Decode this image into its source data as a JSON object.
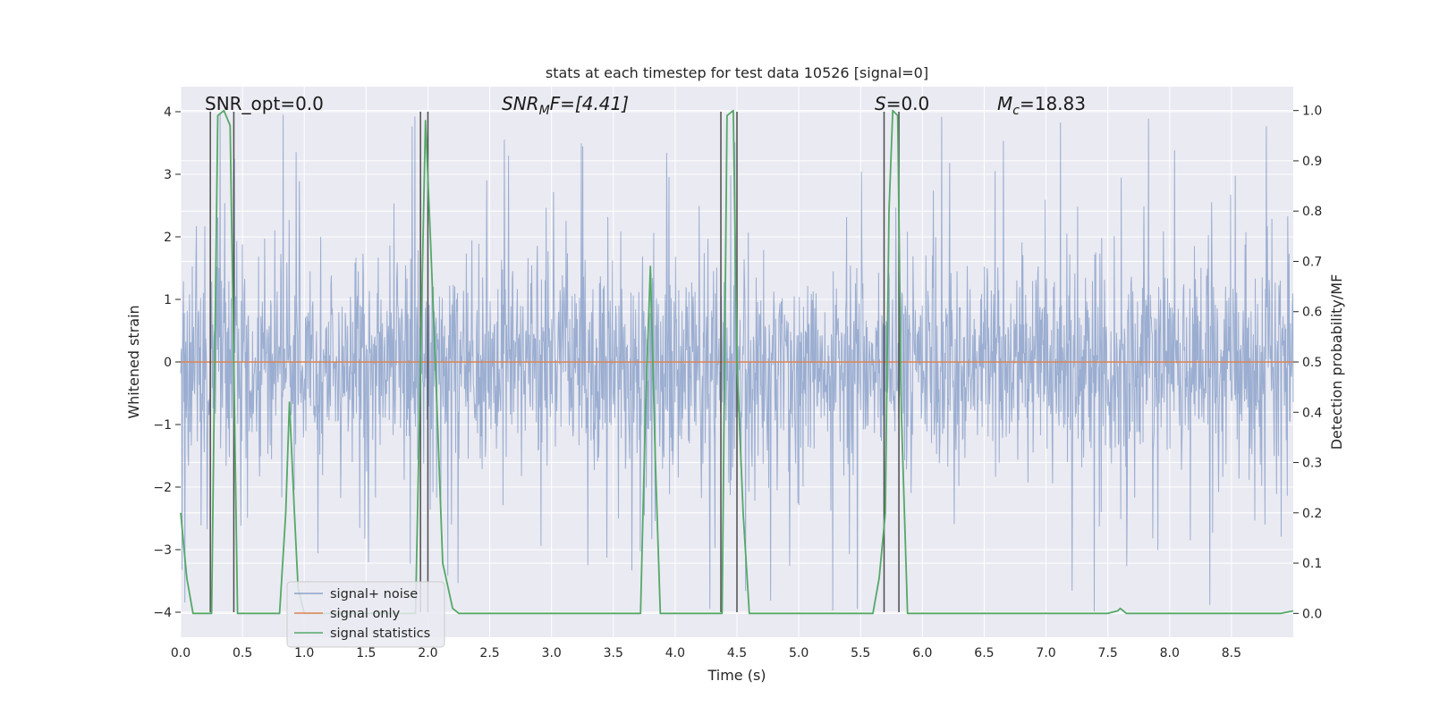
{
  "chart_data": {
    "type": "line",
    "title": "stats at each timestep for test data 10526 [signal=0]",
    "xlabel": "Time (s)",
    "ylabel": "Whitened strain",
    "y2label": "Detection probability/MF",
    "xlim": [
      0,
      9
    ],
    "ylim": [
      -4.4,
      4.4
    ],
    "y2lim": [
      -0.0474,
      1.0474
    ],
    "x_ticks": [
      "0.0",
      "0.5",
      "1.0",
      "1.5",
      "2.0",
      "2.5",
      "3.0",
      "3.5",
      "4.0",
      "4.5",
      "5.0",
      "5.5",
      "6.0",
      "6.5",
      "7.0",
      "7.5",
      "8.0",
      "8.5"
    ],
    "y_ticks": [
      "−4",
      "−3",
      "−2",
      "−1",
      "0",
      "1",
      "2",
      "3",
      "4"
    ],
    "y2_ticks": [
      "0.0",
      "0.1",
      "0.2",
      "0.3",
      "0.4",
      "0.5",
      "0.6",
      "0.7",
      "0.8",
      "0.9",
      "1.0"
    ],
    "grid": true,
    "legend_position": "lower-left",
    "annotations": {
      "snr_opt": "SNR_opt=0.0",
      "snr_mf_main": "SNR",
      "snr_mf_sub": "M",
      "snr_mf_tail": "F=[4.41]",
      "s_main": "S",
      "s_tail": "=0.0",
      "mc_main": "M",
      "mc_sub": "c",
      "mc_tail": "=18.83"
    },
    "colors": {
      "background": "#eaeaf2",
      "grid": "#ffffff",
      "signal_noise": "#4c72b0",
      "signal_only": "#dd8452",
      "statistics": "#55a868",
      "markers": "#4d4d4d"
    },
    "series": [
      {
        "name": "signal+ noise",
        "kind": "noise",
        "band_sigma": 0.8,
        "spike_max": 4.0
      },
      {
        "name": "signal only",
        "kind": "line",
        "x": [
          0,
          9
        ],
        "y": [
          0,
          0
        ]
      },
      {
        "name": "signal statistics",
        "kind": "line",
        "axis": "right",
        "x": [
          0.0,
          0.05,
          0.1,
          0.2,
          0.25,
          0.3,
          0.35,
          0.4,
          0.43,
          0.46,
          0.5,
          0.6,
          0.7,
          0.8,
          0.85,
          0.88,
          0.92,
          0.95,
          1.0,
          1.1,
          1.5,
          1.9,
          1.94,
          1.98,
          2.02,
          2.06,
          2.12,
          2.2,
          2.25,
          2.4,
          2.75,
          2.8,
          3.5,
          3.72,
          3.76,
          3.8,
          3.84,
          3.88,
          3.95,
          4.1,
          4.35,
          4.38,
          4.42,
          4.47,
          4.5,
          4.55,
          4.6,
          4.8,
          5.3,
          5.6,
          5.65,
          5.7,
          5.73,
          5.76,
          5.8,
          5.83,
          5.88,
          6.2,
          7.5,
          7.58,
          7.6,
          7.65,
          7.8,
          8.5,
          8.9,
          9.0
        ],
        "y": [
          0.2,
          0.07,
          0.0,
          0.0,
          0.0,
          0.99,
          1.0,
          0.97,
          0.5,
          0.0,
          0.0,
          0.0,
          0.0,
          0.0,
          0.2,
          0.42,
          0.2,
          0.05,
          0.0,
          0.0,
          0.0,
          0.0,
          0.5,
          0.98,
          0.75,
          0.5,
          0.1,
          0.01,
          0.0,
          0.0,
          0.0,
          0.0,
          0.0,
          0.0,
          0.4,
          0.69,
          0.3,
          0.0,
          0.0,
          0.0,
          0.0,
          0.0,
          0.99,
          1.0,
          0.5,
          0.2,
          0.0,
          0.0,
          0.0,
          0.0,
          0.07,
          0.2,
          0.8,
          1.0,
          0.99,
          0.4,
          0.0,
          0.0,
          0.0,
          0.005,
          0.01,
          0.0,
          0.0,
          0.0,
          0.0,
          0.005
        ]
      }
    ],
    "marker_pairs": [
      [
        0.24,
        0.43
      ],
      [
        1.94,
        2.0
      ],
      [
        4.37,
        4.5
      ],
      [
        5.69,
        5.81
      ]
    ]
  }
}
